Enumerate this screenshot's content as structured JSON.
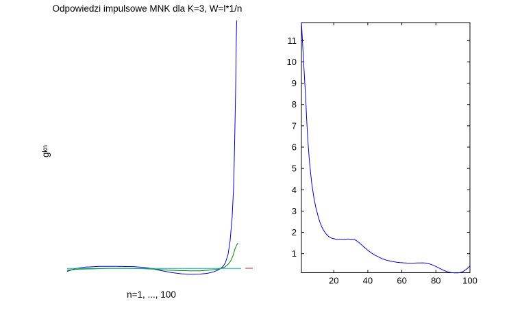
{
  "figure": {
    "background": "#ffffff"
  },
  "left_chart": {
    "title": "Odpowiedzi impulsowe MNK dla K=3, W=l*1/n",
    "xlabel": "n=1, ..., 100",
    "ylabel_base": "g",
    "ylabel_sub": "kn"
  },
  "chart_data": [
    {
      "type": "line",
      "title": "Odpowiedzi impulsowe MNK dla K=3, W=l*1/n",
      "xlabel": "n=1, ..., 100",
      "ylabel": "g_kn",
      "axes_visible": false,
      "grid": false,
      "legend": null,
      "x_range": [
        1,
        100
      ],
      "y_axis_note": "no y ticks shown; y is normalized: 0 = flat baseline level, 1 = blue spike peak",
      "series": [
        {
          "name": "impulse-response-blue",
          "color": "#0000d0",
          "points": [
            [
              1,
              -0.011
            ],
            [
              5.4,
              0
            ],
            [
              10.9,
              0.006
            ],
            [
              18.2,
              0.009
            ],
            [
              27.3,
              0.009
            ],
            [
              36.4,
              0.008
            ],
            [
              41.9,
              0.005
            ],
            [
              46.3,
              0
            ],
            [
              51,
              -0.008
            ],
            [
              56.5,
              -0.016
            ],
            [
              62,
              -0.021
            ],
            [
              66.8,
              -0.023
            ],
            [
              71.9,
              -0.022
            ],
            [
              75.9,
              -0.019
            ],
            [
              79.2,
              -0.013
            ],
            [
              81.7,
              -0.005
            ],
            [
              83.9,
              0.007
            ],
            [
              85.4,
              0.023
            ],
            [
              86.8,
              0.057
            ],
            [
              87.9,
              0.112
            ],
            [
              89,
              0.208
            ],
            [
              89.8,
              0.332
            ],
            [
              90.3,
              0.49
            ],
            [
              90.9,
              0.738
            ],
            [
              91.2,
              0.926
            ],
            [
              91.4,
              1.0
            ]
          ]
        },
        {
          "name": "impulse-response-green",
          "color": "#007d00",
          "points": [
            [
              1,
              -0.006
            ],
            [
              7.2,
              -0.002
            ],
            [
              14.5,
              -0.001
            ],
            [
              23.7,
              0.001
            ],
            [
              32.8,
              0.001
            ],
            [
              40.1,
              0
            ],
            [
              47.4,
              -0.002
            ],
            [
              54.7,
              -0.006
            ],
            [
              60.9,
              -0.008
            ],
            [
              66.8,
              -0.009
            ],
            [
              71.9,
              -0.009
            ],
            [
              76.6,
              -0.006
            ],
            [
              80.3,
              -0.003
            ],
            [
              82.8,
              0
            ],
            [
              85,
              0.006
            ],
            [
              86.8,
              0.017
            ],
            [
              88.3,
              0.032
            ],
            [
              89.4,
              0.051
            ],
            [
              90.5,
              0.079
            ],
            [
              91.4,
              0.095
            ],
            [
              92.1,
              0.103
            ]
          ]
        },
        {
          "name": "baseline-cyan",
          "color": "#00b2b2",
          "points": [
            [
              1,
              0.0006
            ],
            [
              93.8,
              0.0006
            ]
          ]
        },
        {
          "name": "segment-red",
          "color": "#dd2222",
          "points": [
            [
              96,
              0.0014
            ],
            [
              100,
              0.0014
            ]
          ]
        }
      ]
    },
    {
      "type": "line",
      "title": "",
      "xlabel": "",
      "ylabel": "",
      "grid": false,
      "legend": null,
      "box": true,
      "xlim": [
        1,
        100
      ],
      "ylim": [
        0.1,
        11.85
      ],
      "xticks": [
        20,
        40,
        60,
        80,
        100
      ],
      "yticks": [
        1,
        2,
        3,
        4,
        5,
        6,
        7,
        8,
        9,
        10,
        11
      ],
      "series": [
        {
          "name": "error-curve-blue",
          "color": "#0000d0",
          "points": [
            [
              1,
              11.85
            ],
            [
              1.5,
              11.2
            ],
            [
              2,
              10.4
            ],
            [
              2.5,
              9.7
            ],
            [
              3,
              9.0
            ],
            [
              3.5,
              8.35
            ],
            [
              4,
              7.4
            ],
            [
              4.5,
              6.7
            ],
            [
              5,
              6.1
            ],
            [
              5.5,
              5.55
            ],
            [
              6,
              5.1
            ],
            [
              6.5,
              4.7
            ],
            [
              7,
              4.35
            ],
            [
              7.5,
              4.05
            ],
            [
              8,
              3.8
            ],
            [
              8.5,
              3.55
            ],
            [
              9,
              3.35
            ],
            [
              9.5,
              3.15
            ],
            [
              10,
              3.0
            ],
            [
              11,
              2.7
            ],
            [
              12,
              2.45
            ],
            [
              13,
              2.25
            ],
            [
              14,
              2.1
            ],
            [
              15,
              1.98
            ],
            [
              16,
              1.88
            ],
            [
              17,
              1.81
            ],
            [
              18,
              1.76
            ],
            [
              19,
              1.72
            ],
            [
              20,
              1.7
            ],
            [
              21,
              1.685
            ],
            [
              22,
              1.675
            ],
            [
              23,
              1.67
            ],
            [
              24,
              1.67
            ],
            [
              25,
              1.67
            ],
            [
              26,
              1.675
            ],
            [
              27,
              1.68
            ],
            [
              28,
              1.685
            ],
            [
              29,
              1.685
            ],
            [
              30,
              1.68
            ],
            [
              31,
              1.675
            ],
            [
              32,
              1.66
            ],
            [
              33,
              1.63
            ],
            [
              34,
              1.57
            ],
            [
              35,
              1.51
            ],
            [
              36,
              1.44
            ],
            [
              37,
              1.37
            ],
            [
              38,
              1.3
            ],
            [
              39,
              1.23
            ],
            [
              40,
              1.16
            ],
            [
              41,
              1.1
            ],
            [
              42,
              1.04
            ],
            [
              43,
              0.99
            ],
            [
              44,
              0.94
            ],
            [
              45,
              0.9
            ],
            [
              46,
              0.86
            ],
            [
              47,
              0.82
            ],
            [
              48,
              0.78
            ],
            [
              49,
              0.75
            ],
            [
              50,
              0.72
            ],
            [
              51,
              0.695
            ],
            [
              52,
              0.675
            ],
            [
              53,
              0.655
            ],
            [
              54,
              0.64
            ],
            [
              55,
              0.625
            ],
            [
              56,
              0.61
            ],
            [
              57,
              0.6
            ],
            [
              58,
              0.59
            ],
            [
              59,
              0.58
            ],
            [
              60,
              0.575
            ],
            [
              61,
              0.57
            ],
            [
              62,
              0.565
            ],
            [
              63,
              0.56
            ],
            [
              64,
              0.558
            ],
            [
              65,
              0.557
            ],
            [
              66,
              0.557
            ],
            [
              67,
              0.558
            ],
            [
              68,
              0.56
            ],
            [
              69,
              0.563
            ],
            [
              70,
              0.565
            ],
            [
              71,
              0.568
            ],
            [
              72,
              0.57
            ],
            [
              73,
              0.568
            ],
            [
              74,
              0.56
            ],
            [
              75,
              0.545
            ],
            [
              76,
              0.525
            ],
            [
              77,
              0.5
            ],
            [
              78,
              0.47
            ],
            [
              79,
              0.435
            ],
            [
              80,
              0.4
            ],
            [
              81,
              0.36
            ],
            [
              82,
              0.32
            ],
            [
              83,
              0.28
            ],
            [
              84,
              0.24
            ],
            [
              85,
              0.205
            ],
            [
              86,
              0.175
            ],
            [
              87,
              0.15
            ],
            [
              88,
              0.13
            ],
            [
              89,
              0.115
            ],
            [
              90,
              0.107
            ],
            [
              91,
              0.102
            ],
            [
              92,
              0.1
            ],
            [
              93,
              0.102
            ],
            [
              94,
              0.11
            ],
            [
              95,
              0.13
            ],
            [
              96,
              0.165
            ],
            [
              97,
              0.215
            ],
            [
              98,
              0.275
            ],
            [
              99,
              0.345
            ],
            [
              100,
              0.42
            ]
          ]
        }
      ]
    }
  ]
}
